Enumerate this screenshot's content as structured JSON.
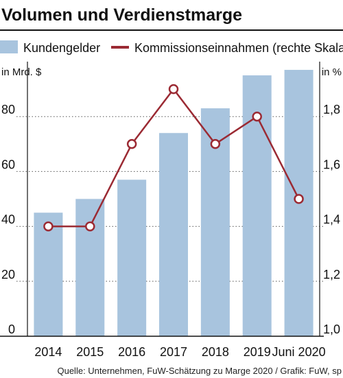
{
  "chart_data": {
    "type": "bar+line",
    "title": "Volumen und Verdienstmarge",
    "categories": [
      "2014",
      "2015",
      "2016",
      "2017",
      "2018",
      "2019",
      "Juni 2020"
    ],
    "series": [
      {
        "name": "Kundengelder",
        "type": "bar",
        "axis": "left",
        "values": [
          45,
          50,
          57,
          74,
          83,
          95,
          97
        ]
      },
      {
        "name": "Kommissionseinnahmen (rechte Skala)",
        "type": "line",
        "axis": "right",
        "values": [
          1.4,
          1.4,
          1.7,
          1.9,
          1.7,
          1.8,
          1.5
        ]
      }
    ],
    "left_axis": {
      "unit_label": "in Mrd. $",
      "ylim": [
        0,
        100
      ],
      "ticks": [
        0,
        20,
        40,
        60,
        80
      ],
      "tick_labels": [
        "0",
        "20",
        "40",
        "60",
        "80"
      ]
    },
    "right_axis": {
      "unit_label": "in %",
      "ylim": [
        1.0,
        2.0
      ],
      "ticks": [
        1.0,
        1.2,
        1.4,
        1.6,
        1.8
      ],
      "tick_labels": [
        "1,0",
        "1,2",
        "1,4",
        "1,6",
        "1,8"
      ]
    },
    "grid": "dotted horizontal",
    "legend_position": "top",
    "source": "Quelle: Unternehmen, FuW-Schätzung zu Marge 2020 / Grafik: FuW, sp"
  },
  "colors": {
    "bar": "#a8c4de",
    "line": "#9b2a33",
    "marker_fill": "#ffffff",
    "grid": "#555555",
    "axis": "#111111"
  }
}
